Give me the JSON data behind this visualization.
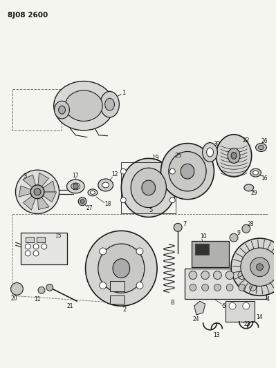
{
  "title": "8J08 2600",
  "bg_color": "#f5f5f0",
  "line_color": "#1a1a1a",
  "fig_width": 3.99,
  "fig_height": 5.33,
  "dpi": 100
}
